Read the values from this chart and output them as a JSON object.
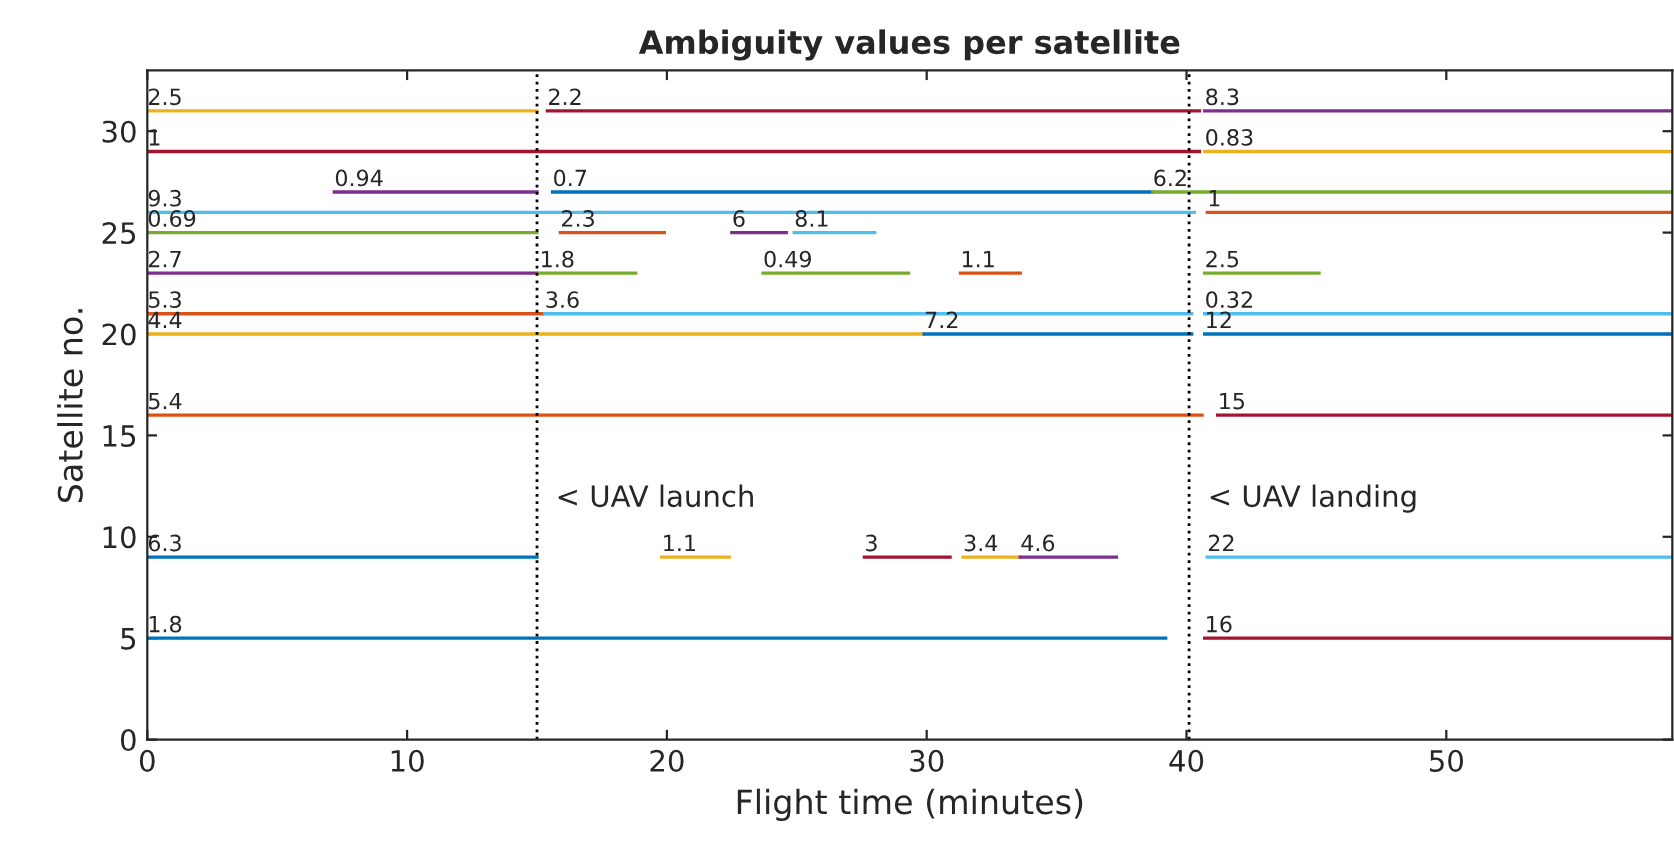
{
  "chart_data": {
    "type": "line",
    "title": "Ambiguity values per satellite",
    "xlabel": "Flight time (minutes)",
    "ylabel": "Satellite no.",
    "xlim": [
      0,
      58.7
    ],
    "ylim": [
      0,
      33
    ],
    "xticks": [
      0,
      10,
      20,
      30,
      40,
      50
    ],
    "yticks": [
      0,
      5,
      10,
      15,
      20,
      25,
      30
    ],
    "grid": false,
    "legend": false,
    "marker": "none",
    "line_style": "solid",
    "series": [
      {
        "color": "#edb120",
        "x": [
          0,
          15
        ],
        "values": [
          31,
          31
        ]
      },
      {
        "color": "#a2142f",
        "x": [
          15.4,
          40.5
        ],
        "values": [
          31,
          31
        ]
      },
      {
        "color": "#7e2f8e",
        "x": [
          40.7,
          58.7
        ],
        "values": [
          31,
          31
        ]
      },
      {
        "color": "#a2142f",
        "x": [
          0,
          40.5
        ],
        "values": [
          29,
          29
        ]
      },
      {
        "color": "#edb120",
        "x": [
          40.7,
          58.7
        ],
        "values": [
          29,
          29
        ]
      },
      {
        "color": "#7e2f8e",
        "x": [
          7.2,
          15
        ],
        "values": [
          27,
          27
        ]
      },
      {
        "color": "#0072bd",
        "x": [
          15.6,
          38.7
        ],
        "values": [
          27,
          27
        ]
      },
      {
        "color": "#77ac30",
        "x": [
          38.7,
          58.7
        ],
        "values": [
          27,
          27
        ]
      },
      {
        "color": "#4dbeee",
        "x": [
          0,
          40.3
        ],
        "values": [
          26,
          26
        ]
      },
      {
        "color": "#d95319",
        "x": [
          40.8,
          58.7
        ],
        "values": [
          26,
          26
        ]
      },
      {
        "color": "#77ac30",
        "x": [
          0,
          15
        ],
        "values": [
          25,
          25
        ]
      },
      {
        "color": "#d95319",
        "x": [
          15.9,
          19.9
        ],
        "values": [
          25,
          25
        ]
      },
      {
        "color": "#7e2f8e",
        "x": [
          22.5,
          24.6
        ],
        "values": [
          25,
          25
        ]
      },
      {
        "color": "#4dbeee",
        "x": [
          24.9,
          28.0
        ],
        "values": [
          25,
          25
        ]
      },
      {
        "color": "#7e2f8e",
        "x": [
          0,
          15
        ],
        "values": [
          23,
          23
        ]
      },
      {
        "color": "#77ac30",
        "x": [
          15.1,
          18.8
        ],
        "values": [
          23,
          23
        ]
      },
      {
        "color": "#77ac30",
        "x": [
          23.7,
          29.3
        ],
        "values": [
          23,
          23
        ]
      },
      {
        "color": "#d95319",
        "x": [
          31.3,
          33.6
        ],
        "values": [
          23,
          23
        ]
      },
      {
        "color": "#77ac30",
        "x": [
          40.7,
          45.1
        ],
        "values": [
          23,
          23
        ]
      },
      {
        "color": "#d95319",
        "x": [
          0,
          15.2
        ],
        "values": [
          21,
          21
        ]
      },
      {
        "color": "#4dbeee",
        "x": [
          15.3,
          40.2
        ],
        "values": [
          21,
          21
        ]
      },
      {
        "color": "#4dbeee",
        "x": [
          40.7,
          58.7
        ],
        "values": [
          21,
          21
        ]
      },
      {
        "color": "#edb120",
        "x": [
          0,
          29.9
        ],
        "values": [
          20,
          20
        ]
      },
      {
        "color": "#0072bd",
        "x": [
          29.9,
          40.2
        ],
        "values": [
          20,
          20
        ]
      },
      {
        "color": "#0072bd",
        "x": [
          40.7,
          58.7
        ],
        "values": [
          20,
          20
        ]
      },
      {
        "color": "#d95319",
        "x": [
          0,
          40.6
        ],
        "values": [
          16,
          16
        ]
      },
      {
        "color": "#a2142f",
        "x": [
          41.2,
          58.7
        ],
        "values": [
          16,
          16
        ]
      },
      {
        "color": "#0072bd",
        "x": [
          0,
          15
        ],
        "values": [
          9,
          9
        ]
      },
      {
        "color": "#edb120",
        "x": [
          19.8,
          22.4
        ],
        "values": [
          9,
          9
        ]
      },
      {
        "color": "#a2142f",
        "x": [
          27.6,
          30.9
        ],
        "values": [
          9,
          9
        ]
      },
      {
        "color": "#edb120",
        "x": [
          31.4,
          33.6
        ],
        "values": [
          9,
          9
        ]
      },
      {
        "color": "#7e2f8e",
        "x": [
          33.6,
          37.3
        ],
        "values": [
          9,
          9
        ]
      },
      {
        "color": "#4dbeee",
        "x": [
          40.8,
          58.7
        ],
        "values": [
          9,
          9
        ]
      },
      {
        "color": "#0072bd",
        "x": [
          0,
          39.2
        ],
        "values": [
          5,
          5
        ]
      },
      {
        "color": "#a2142f",
        "x": [
          40.7,
          58.7
        ],
        "values": [
          5,
          5
        ]
      }
    ],
    "annotations": [
      {
        "text": "2.5",
        "x": 0,
        "y": 31
      },
      {
        "text": "2.2",
        "x": 15.4,
        "y": 31
      },
      {
        "text": "8.3",
        "x": 40.7,
        "y": 31
      },
      {
        "text": "1",
        "x": 0,
        "y": 29
      },
      {
        "text": "0.83",
        "x": 40.7,
        "y": 29
      },
      {
        "text": "0.94",
        "x": 7.2,
        "y": 27
      },
      {
        "text": "0.7",
        "x": 15.6,
        "y": 27
      },
      {
        "text": "6.2",
        "x": 38.7,
        "y": 27
      },
      {
        "text": "9.3",
        "x": 0,
        "y": 26
      },
      {
        "text": "1",
        "x": 40.8,
        "y": 26
      },
      {
        "text": "0.69",
        "x": 0,
        "y": 25
      },
      {
        "text": "2.3",
        "x": 15.9,
        "y": 25
      },
      {
        "text": "6",
        "x": 22.5,
        "y": 25
      },
      {
        "text": "8.1",
        "x": 24.9,
        "y": 25
      },
      {
        "text": "2.7",
        "x": 0,
        "y": 23
      },
      {
        "text": "1.8",
        "x": 15.1,
        "y": 23
      },
      {
        "text": "0.49",
        "x": 23.7,
        "y": 23
      },
      {
        "text": "1.1",
        "x": 31.3,
        "y": 23
      },
      {
        "text": "2.5",
        "x": 40.7,
        "y": 23
      },
      {
        "text": "5.3",
        "x": 0,
        "y": 21
      },
      {
        "text": "3.6",
        "x": 15.3,
        "y": 21
      },
      {
        "text": "0.32",
        "x": 40.7,
        "y": 21
      },
      {
        "text": "4.4",
        "x": 0,
        "y": 20
      },
      {
        "text": "7.2",
        "x": 29.9,
        "y": 20
      },
      {
        "text": "12",
        "x": 40.7,
        "y": 20
      },
      {
        "text": "5.4",
        "x": 0,
        "y": 16
      },
      {
        "text": "15",
        "x": 41.2,
        "y": 16
      },
      {
        "text": "6.3",
        "x": 0,
        "y": 9
      },
      {
        "text": "1.1",
        "x": 19.8,
        "y": 9
      },
      {
        "text": "3",
        "x": 27.6,
        "y": 9
      },
      {
        "text": "3.4",
        "x": 31.4,
        "y": 9
      },
      {
        "text": "4.6",
        "x": 33.6,
        "y": 9
      },
      {
        "text": "22",
        "x": 40.8,
        "y": 9
      },
      {
        "text": "1.8",
        "x": 0,
        "y": 5
      },
      {
        "text": "16",
        "x": 40.7,
        "y": 5
      }
    ],
    "ref_lines": [
      {
        "axis": "x",
        "value": 15,
        "label": "< UAV launch",
        "line_style": "dotted",
        "color": "#000000"
      },
      {
        "axis": "x",
        "value": 40.1,
        "label": "< UAV landing",
        "line_style": "dotted",
        "color": "#000000"
      }
    ]
  }
}
